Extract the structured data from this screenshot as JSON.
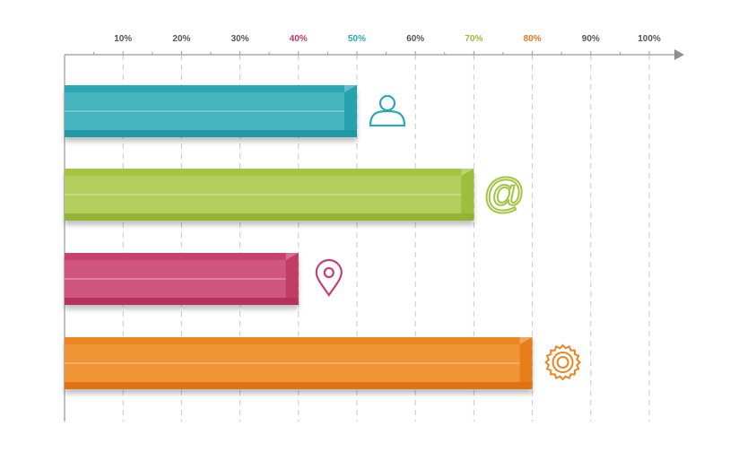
{
  "chart_data": {
    "type": "bar",
    "orientation": "horizontal",
    "title": "",
    "xlabel": "",
    "ylabel": "",
    "xlim": [
      0,
      100
    ],
    "grid": "vertical dashed",
    "ticks": [
      {
        "value": 10,
        "label": "10%",
        "color": "#555555"
      },
      {
        "value": 20,
        "label": "20%",
        "color": "#555555"
      },
      {
        "value": 30,
        "label": "30%",
        "color": "#555555"
      },
      {
        "value": 40,
        "label": "40%",
        "color": "#c2356b"
      },
      {
        "value": 50,
        "label": "50%",
        "color": "#2aa9b5"
      },
      {
        "value": 60,
        "label": "60%",
        "color": "#555555"
      },
      {
        "value": 70,
        "label": "70%",
        "color": "#9cbc3a"
      },
      {
        "value": 80,
        "label": "80%",
        "color": "#ea7a1e"
      },
      {
        "value": 90,
        "label": "90%",
        "color": "#555555"
      },
      {
        "value": 100,
        "label": "100%",
        "color": "#555555"
      }
    ],
    "bars": [
      {
        "value": 50,
        "color": "#2aa9b5",
        "light": "#5cc0c9",
        "dark": "#1f97a2",
        "icon": "user-icon"
      },
      {
        "value": 70,
        "color": "#a5c443",
        "light": "#c0d771",
        "dark": "#90b232",
        "icon": "at-sign-icon"
      },
      {
        "value": 40,
        "color": "#c8426f",
        "light": "#d56a8c",
        "dark": "#b2305c",
        "icon": "location-pin-icon"
      },
      {
        "value": 80,
        "color": "#ec8623",
        "light": "#f2a243",
        "dark": "#de6f14",
        "icon": "gear-icon"
      }
    ]
  }
}
